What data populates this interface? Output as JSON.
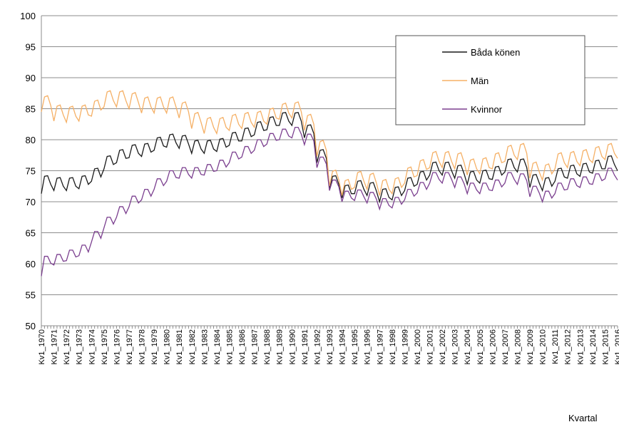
{
  "chart_data": {
    "type": "line",
    "x_label": "Kvartal",
    "categories": [
      "Kv1_1970",
      null,
      null,
      null,
      "Kv1_1971",
      null,
      null,
      null,
      "Kv1_1972",
      null,
      null,
      null,
      "Kv1_1973",
      null,
      null,
      null,
      "Kv1_1974",
      null,
      null,
      null,
      "Kv1_1975",
      null,
      null,
      null,
      "Kv1_1976",
      null,
      null,
      null,
      "Kv1_1977",
      null,
      null,
      null,
      "Kv1_1978",
      null,
      null,
      null,
      "Kv1_1979",
      null,
      null,
      null,
      "Kv1_1980",
      null,
      null,
      null,
      "Kv1_1981",
      null,
      null,
      null,
      "Kv1_1982",
      null,
      null,
      null,
      "Kv1_1983",
      null,
      null,
      null,
      "Kv1_1984",
      null,
      null,
      null,
      "Kv1_1985",
      null,
      null,
      null,
      "Kv1_1986",
      null,
      null,
      null,
      "Kv1_1987",
      null,
      null,
      null,
      "Kv1_1988",
      null,
      null,
      null,
      "Kv1_1989",
      null,
      null,
      null,
      "Kv1_1990",
      null,
      null,
      null,
      "Kv1_1991",
      null,
      null,
      null,
      "Kv1_1992",
      null,
      null,
      null,
      "Kv1_1993",
      null,
      null,
      null,
      "Kv1_1994",
      null,
      null,
      null,
      "Kv1_1995",
      null,
      null,
      null,
      "Kv1_1996",
      null,
      null,
      null,
      "Kv1_1997",
      null,
      null,
      null,
      "Kv1_1998",
      null,
      null,
      null,
      "Kv1_1999",
      null,
      null,
      null,
      "Kv1_2000",
      null,
      null,
      null,
      "Kv1_2001",
      null,
      null,
      null,
      "Kv1_2002",
      null,
      null,
      null,
      "Kv1_2003",
      null,
      null,
      null,
      "Kv1_2004",
      null,
      null,
      null,
      "Kv1_2005",
      null,
      null,
      null,
      "Kv1_2006",
      null,
      null,
      null,
      "Kv1_2007",
      null,
      null,
      null,
      "Kv1_2008",
      null,
      null,
      null,
      "Kv1_2009",
      null,
      null,
      null,
      "Kv1_2010",
      null,
      null,
      null,
      "Kv1_2011",
      null,
      null,
      null,
      "Kv1_2012",
      null,
      null,
      null,
      "Kv1_2013",
      null,
      null,
      null,
      "Kv1_2014",
      null,
      null,
      null,
      "Kv1_2015",
      null,
      null,
      null,
      "Kv1_2016"
    ],
    "series": [
      {
        "name": "Båda könen",
        "color": "#1a1a1a",
        "values": [
          71.3,
          74.1,
          74.2,
          72.8,
          71.8,
          73.8,
          73.9,
          72.5,
          71.8,
          73.8,
          73.9,
          72.5,
          72.1,
          74.1,
          74.2,
          72.8,
          73.3,
          75.3,
          75.4,
          74,
          75.3,
          77.3,
          77.4,
          76,
          76.3,
          78.3,
          78.4,
          77,
          77.1,
          79.1,
          79.2,
          77.8,
          77.3,
          79.3,
          79.4,
          78,
          78.3,
          80.3,
          80.4,
          79,
          78.8,
          80.8,
          80.9,
          79.5,
          78.6,
          80.6,
          80.7,
          79.3,
          77.8,
          79.8,
          79.9,
          78.5,
          77.8,
          79.8,
          79.9,
          78.5,
          78.1,
          80.1,
          80.2,
          78.8,
          79.1,
          81.1,
          81.2,
          79.8,
          79.8,
          81.8,
          81.9,
          80.5,
          80.8,
          82.8,
          82.9,
          81.5,
          81.6,
          83.6,
          83.7,
          82.3,
          82.3,
          84.3,
          84.4,
          83,
          82.3,
          84.3,
          84.4,
          83,
          80.3,
          82.3,
          82.4,
          81,
          76.3,
          78.3,
          78.4,
          77,
          72.1,
          74.1,
          74.2,
          72.8,
          70.6,
          72.6,
          72.7,
          71.3,
          71.3,
          73.3,
          73.4,
          72,
          71,
          73,
          73.1,
          71.7,
          70,
          72,
          72.1,
          70.7,
          70.3,
          72.3,
          72.4,
          71,
          71.8,
          73.8,
          73.9,
          72.5,
          72.8,
          74.8,
          74.9,
          73.5,
          74.3,
          76.3,
          76.4,
          75,
          74.3,
          76.3,
          76.4,
          75,
          73.8,
          75.8,
          75.9,
          74.5,
          72.8,
          74.8,
          74.9,
          73.5,
          73,
          75,
          75.1,
          73.7,
          73.6,
          75.6,
          75.7,
          74.3,
          74.8,
          76.8,
          76.9,
          75.5,
          74.8,
          76.8,
          76.9,
          75.5,
          72.3,
          74.3,
          74.4,
          73,
          71.8,
          73.8,
          73.9,
          72.5,
          73.3,
          75.3,
          75.4,
          74,
          73.8,
          75.8,
          75.9,
          74.5,
          74.1,
          76.1,
          76.2,
          74.8,
          74.6,
          76.6,
          76.7,
          75.3,
          75.3,
          77.3,
          77.4,
          76,
          75
        ]
      },
      {
        "name": "Män",
        "color": "#f5b066",
        "values": [
          84.5,
          86.9,
          87.1,
          85.5,
          83,
          85.4,
          85.6,
          84,
          82.8,
          85.2,
          85.4,
          83.8,
          83,
          85.4,
          85.6,
          84,
          83.8,
          86.2,
          86.4,
          84.8,
          85.3,
          87.7,
          87.9,
          86.3,
          85.3,
          87.7,
          87.9,
          86.3,
          85,
          87.4,
          87.6,
          86,
          84.3,
          86.7,
          86.9,
          85.3,
          84.3,
          86.7,
          86.9,
          85.3,
          84.3,
          86.7,
          86.9,
          85.3,
          83.5,
          85.9,
          86.1,
          84.5,
          81.8,
          84.2,
          84.4,
          82.8,
          81,
          83.4,
          83.6,
          82,
          81,
          83.4,
          83.6,
          82,
          81.5,
          83.9,
          84.1,
          82.5,
          81.8,
          84.2,
          84.4,
          82.8,
          82,
          84.4,
          84.6,
          83,
          82.5,
          84.9,
          85.1,
          83.5,
          83.3,
          85.7,
          85.9,
          84.3,
          83.5,
          85.9,
          86.1,
          84.5,
          81.5,
          83.9,
          84.1,
          82.5,
          77.3,
          79.7,
          79.9,
          78.3,
          72.5,
          74.9,
          75.1,
          73.5,
          71,
          73.4,
          73.6,
          72,
          72.3,
          74.7,
          74.9,
          73.3,
          72,
          74.4,
          74.6,
          73,
          71,
          73.4,
          73.6,
          72,
          71.3,
          73.7,
          73.9,
          72.3,
          73,
          75.4,
          75.6,
          74,
          74.2,
          76.6,
          76.8,
          75.2,
          75.5,
          77.9,
          78.1,
          76.5,
          75.5,
          77.9,
          78.1,
          76.5,
          75.3,
          77.7,
          77.9,
          76.3,
          74.3,
          76.7,
          76.9,
          75.3,
          74.5,
          76.9,
          77.1,
          75.5,
          75.3,
          77.7,
          77.9,
          76.3,
          76.5,
          78.9,
          79.1,
          77.5,
          76.8,
          79.2,
          79.4,
          77.8,
          73.8,
          76.2,
          76.4,
          74.8,
          73.5,
          75.9,
          76.1,
          74.5,
          75.3,
          77.7,
          77.9,
          76.3,
          75.5,
          77.9,
          78.1,
          76.5,
          75.8,
          78.2,
          78.4,
          76.8,
          76.3,
          78.7,
          78.9,
          77.3,
          76.8,
          79.2,
          79.4,
          77.8,
          77
        ]
      },
      {
        "name": "Kvinnor",
        "color": "#7b3f8f",
        "values": [
          58,
          61.2,
          61.2,
          60.1,
          59.8,
          61.5,
          61.5,
          60.4,
          60.5,
          62.2,
          62.2,
          61.1,
          61.3,
          63,
          63,
          61.9,
          63.5,
          65.2,
          65.2,
          64.1,
          65.8,
          67.5,
          67.5,
          66.4,
          67.5,
          69.2,
          69.2,
          68.1,
          69.2,
          70.9,
          70.9,
          69.8,
          70.3,
          72,
          72,
          70.9,
          72,
          73.7,
          73.7,
          72.6,
          73.3,
          75,
          75,
          73.9,
          73.8,
          75.5,
          75.5,
          74.4,
          73.8,
          75.5,
          75.5,
          74.4,
          74.3,
          76,
          76,
          74.9,
          75,
          76.7,
          76.7,
          75.6,
          76.3,
          78,
          78,
          76.9,
          77.2,
          78.9,
          78.9,
          77.8,
          78.3,
          80,
          80,
          78.9,
          79.3,
          81,
          81,
          79.9,
          80,
          81.7,
          81.7,
          80.6,
          80.3,
          82,
          82,
          80.9,
          79.2,
          80.9,
          80.9,
          79.8,
          75.5,
          77.2,
          77.2,
          76.1,
          71.8,
          73.5,
          73.5,
          72.4,
          70,
          71.7,
          71.7,
          70.6,
          70.2,
          71.9,
          71.9,
          70.8,
          69.8,
          71.5,
          71.5,
          70.4,
          68.8,
          70.5,
          70.5,
          69.4,
          69,
          70.7,
          70.7,
          69.6,
          70.3,
          72,
          72,
          70.9,
          71.4,
          73.1,
          73.1,
          72,
          73,
          74.7,
          74.7,
          73.6,
          73,
          74.7,
          74.7,
          73.6,
          72.3,
          74,
          74,
          72.9,
          71.3,
          73,
          73,
          71.9,
          71.3,
          73,
          73,
          71.9,
          71.8,
          73.5,
          73.5,
          72.4,
          73,
          74.7,
          74.7,
          73.6,
          72.8,
          74.5,
          74.5,
          73.4,
          70.8,
          72.5,
          72.5,
          71.4,
          70,
          71.7,
          71.7,
          70.6,
          71.3,
          73,
          73,
          71.9,
          72,
          73.7,
          73.7,
          72.6,
          72.3,
          74,
          74,
          72.9,
          72.8,
          74.5,
          74.5,
          73.4,
          73.7,
          75.4,
          75.4,
          74.3,
          73.5
        ]
      }
    ],
    "ylim": [
      50,
      100
    ],
    "yticks": [
      50,
      55,
      60,
      65,
      70,
      75,
      80,
      85,
      90,
      95,
      100
    ],
    "grid": true,
    "legend": "upper right"
  }
}
